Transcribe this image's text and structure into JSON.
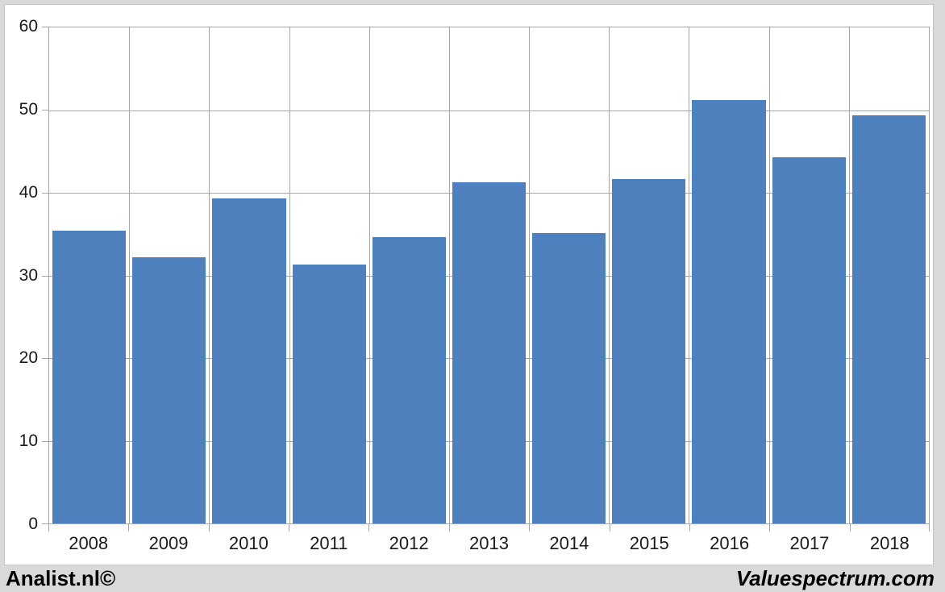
{
  "chart_data": {
    "type": "bar",
    "categories": [
      "2008",
      "2009",
      "2010",
      "2011",
      "2012",
      "2013",
      "2014",
      "2015",
      "2016",
      "2017",
      "2018"
    ],
    "values": [
      35.4,
      32.2,
      39.3,
      31.3,
      34.6,
      41.3,
      35.1,
      41.7,
      51.2,
      44.3,
      49.4
    ],
    "title": "",
    "xlabel": "",
    "ylabel": "",
    "ylim": [
      0,
      60
    ],
    "ytick_step": 10,
    "ytick_labels": [
      "0",
      "10",
      "20",
      "30",
      "40",
      "50",
      "60"
    ],
    "grid": true,
    "legend": "none",
    "bar_gap_fraction": 0.08
  },
  "footer": {
    "left_text": "Analist.nl©",
    "right_text": "Valuespectrum.com"
  },
  "colors": {
    "page_bg": "#d9d9d9",
    "panel_bg": "#ffffff",
    "panel_border": "#c3c3c3",
    "grid": "#a6a6a6",
    "bar": "#4e80bd",
    "bar_border": "#47essai",
    "text": "#1a1a1a"
  }
}
